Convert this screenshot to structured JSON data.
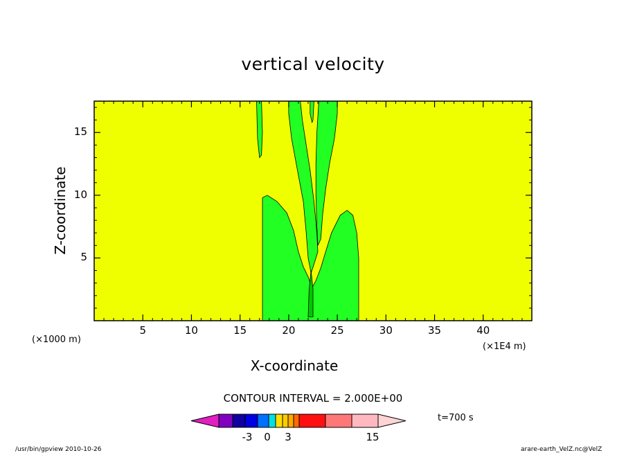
{
  "chart_data": {
    "type": "heatmap",
    "title": "vertical velocity",
    "xlabel": "X-coordinate",
    "ylabel": "Z-coordinate",
    "x_unit_left": "(×1000 m)",
    "x_unit_right": "(×1E4 m)",
    "xlim": [
      0,
      45
    ],
    "ylim": [
      0,
      17.5
    ],
    "xticks": [
      "5",
      "10",
      "15",
      "20",
      "25",
      "30",
      "35",
      "40"
    ],
    "yticks": [
      "5",
      "10",
      "15"
    ],
    "xtick_values": [
      5,
      10,
      15,
      20,
      25,
      30,
      35,
      40
    ],
    "ytick_values": [
      5,
      10,
      15
    ],
    "background_level_color": "#f0ff00",
    "regions": [
      {
        "level": "0 to 2 (yellow)",
        "color": "#f0ff00",
        "note": "background"
      },
      {
        "level": "-2 to 0 (green)",
        "color": "#22ff22",
        "note": "lower plume x≈17–27, z≤10"
      },
      {
        "level": "-2 to 0 (green)",
        "color": "#22ff22",
        "note": "upper plumes x≈17–25, z≈6–17.5"
      },
      {
        "level": "-4 to -2 (dark green)",
        "color": "#00c800",
        "note": "core near x≈22, z≈1–4"
      }
    ],
    "contour_interval": "CONTOUR INTERVAL = 2.000E+00",
    "colorbar": {
      "colors": [
        "#e020c0",
        "#8000c0",
        "#1000a0",
        "#0000e0",
        "#0070ff",
        "#00e0e0",
        "#ffe000",
        "#ffcc00",
        "#ffaa00",
        "#ff6a00",
        "#ff1010",
        "#ff7878",
        "#ffb8c0",
        "#ffd4d4"
      ],
      "labels": [
        "-3",
        "0",
        "3",
        "15"
      ],
      "time_label": "t=700 s"
    }
  },
  "footer": {
    "left": "/usr/bin/gpview   2010-10-26",
    "right": "arare-earth_VelZ.nc@VelZ"
  }
}
